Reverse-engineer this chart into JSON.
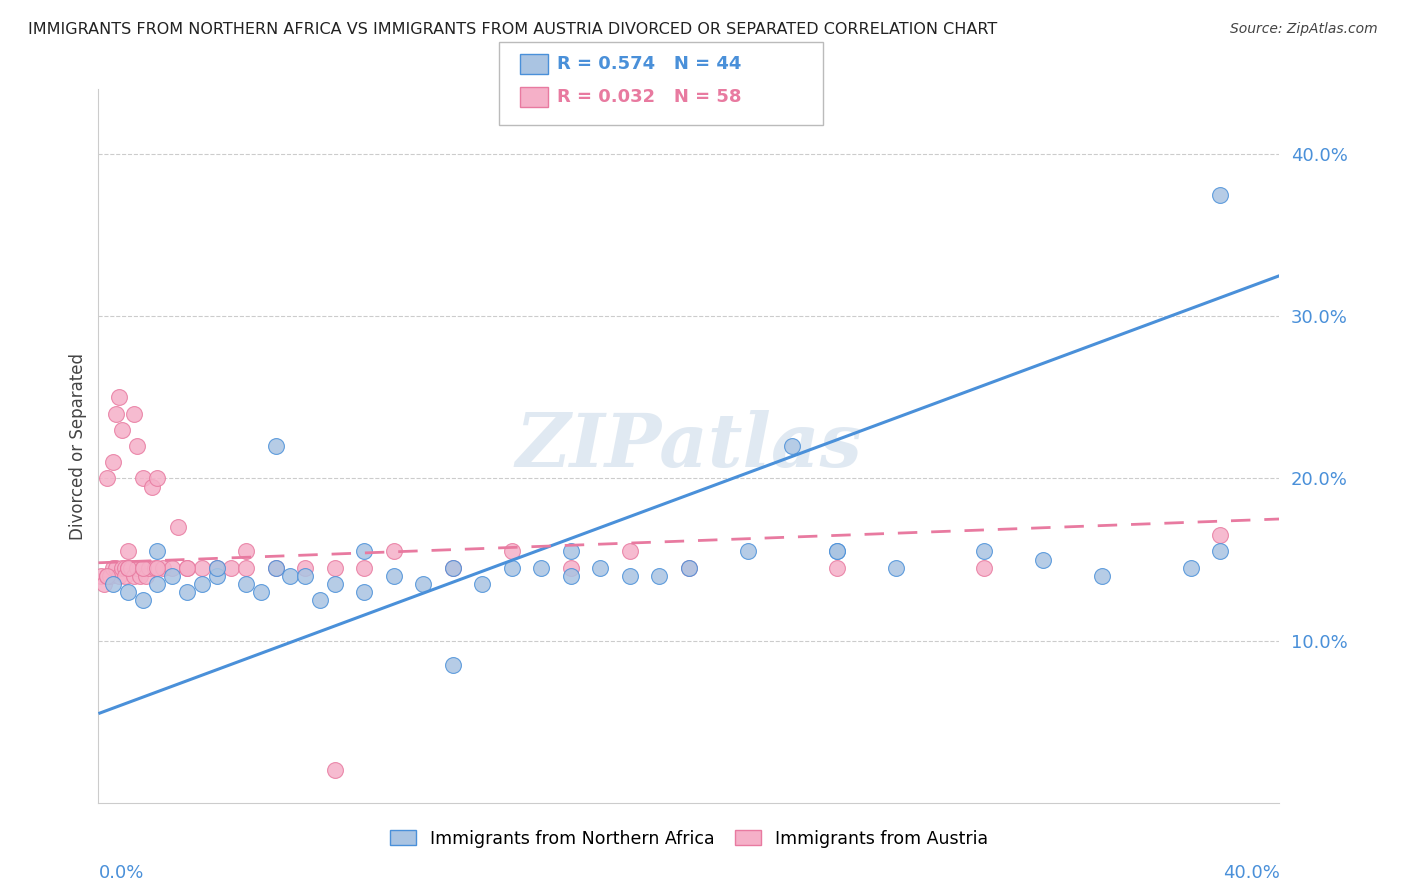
{
  "title": "IMMIGRANTS FROM NORTHERN AFRICA VS IMMIGRANTS FROM AUSTRIA DIVORCED OR SEPARATED CORRELATION CHART",
  "source": "Source: ZipAtlas.com",
  "ylabel": "Divorced or Separated",
  "ytick_labels": [
    "10.0%",
    "20.0%",
    "30.0%",
    "40.0%"
  ],
  "ytick_values": [
    0.1,
    0.2,
    0.3,
    0.4
  ],
  "xlim": [
    0.0,
    0.4
  ],
  "ylim": [
    0.0,
    0.44
  ],
  "legend_label_blue": "Immigrants from Northern Africa",
  "legend_label_pink": "Immigrants from Austria",
  "blue_color": "#aac4e2",
  "blue_line_color": "#4a90d9",
  "pink_color": "#f5b0c8",
  "pink_line_color": "#e87aa0",
  "watermark": "ZIPatlas",
  "blue_line_x0": 0.0,
  "blue_line_y0": 0.055,
  "blue_line_x1": 0.4,
  "blue_line_y1": 0.325,
  "pink_line_x0": 0.0,
  "pink_line_y0": 0.148,
  "pink_line_x1": 0.4,
  "pink_line_y1": 0.175,
  "blue_x": [
    0.005,
    0.01,
    0.015,
    0.02,
    0.025,
    0.03,
    0.035,
    0.04,
    0.05,
    0.055,
    0.06,
    0.065,
    0.07,
    0.075,
    0.08,
    0.09,
    0.1,
    0.11,
    0.12,
    0.13,
    0.14,
    0.15,
    0.16,
    0.17,
    0.18,
    0.19,
    0.2,
    0.22,
    0.235,
    0.25,
    0.27,
    0.3,
    0.32,
    0.34,
    0.37,
    0.38,
    0.02,
    0.04,
    0.06,
    0.09,
    0.12,
    0.16,
    0.25,
    0.38
  ],
  "blue_y": [
    0.135,
    0.13,
    0.125,
    0.135,
    0.14,
    0.13,
    0.135,
    0.14,
    0.135,
    0.13,
    0.145,
    0.14,
    0.14,
    0.125,
    0.135,
    0.13,
    0.14,
    0.135,
    0.145,
    0.135,
    0.145,
    0.145,
    0.14,
    0.145,
    0.14,
    0.14,
    0.145,
    0.155,
    0.22,
    0.155,
    0.145,
    0.155,
    0.15,
    0.14,
    0.145,
    0.375,
    0.155,
    0.145,
    0.22,
    0.155,
    0.085,
    0.155,
    0.155,
    0.155
  ],
  "pink_x": [
    0.001,
    0.002,
    0.003,
    0.003,
    0.004,
    0.005,
    0.005,
    0.006,
    0.007,
    0.007,
    0.008,
    0.008,
    0.009,
    0.009,
    0.01,
    0.01,
    0.011,
    0.012,
    0.012,
    0.013,
    0.013,
    0.014,
    0.015,
    0.015,
    0.016,
    0.017,
    0.018,
    0.019,
    0.02,
    0.022,
    0.025,
    0.027,
    0.03,
    0.035,
    0.04,
    0.045,
    0.05,
    0.06,
    0.07,
    0.08,
    0.09,
    0.1,
    0.12,
    0.14,
    0.16,
    0.18,
    0.2,
    0.25,
    0.3,
    0.38,
    0.003,
    0.006,
    0.01,
    0.015,
    0.02,
    0.03,
    0.05,
    0.08
  ],
  "pink_y": [
    0.14,
    0.135,
    0.14,
    0.2,
    0.14,
    0.145,
    0.21,
    0.145,
    0.14,
    0.25,
    0.145,
    0.23,
    0.145,
    0.14,
    0.155,
    0.145,
    0.145,
    0.14,
    0.24,
    0.145,
    0.22,
    0.14,
    0.145,
    0.2,
    0.14,
    0.145,
    0.195,
    0.145,
    0.2,
    0.145,
    0.145,
    0.17,
    0.145,
    0.145,
    0.145,
    0.145,
    0.155,
    0.145,
    0.145,
    0.145,
    0.145,
    0.155,
    0.145,
    0.155,
    0.145,
    0.155,
    0.145,
    0.145,
    0.145,
    0.165,
    0.14,
    0.24,
    0.145,
    0.145,
    0.145,
    0.145,
    0.145,
    0.02
  ]
}
